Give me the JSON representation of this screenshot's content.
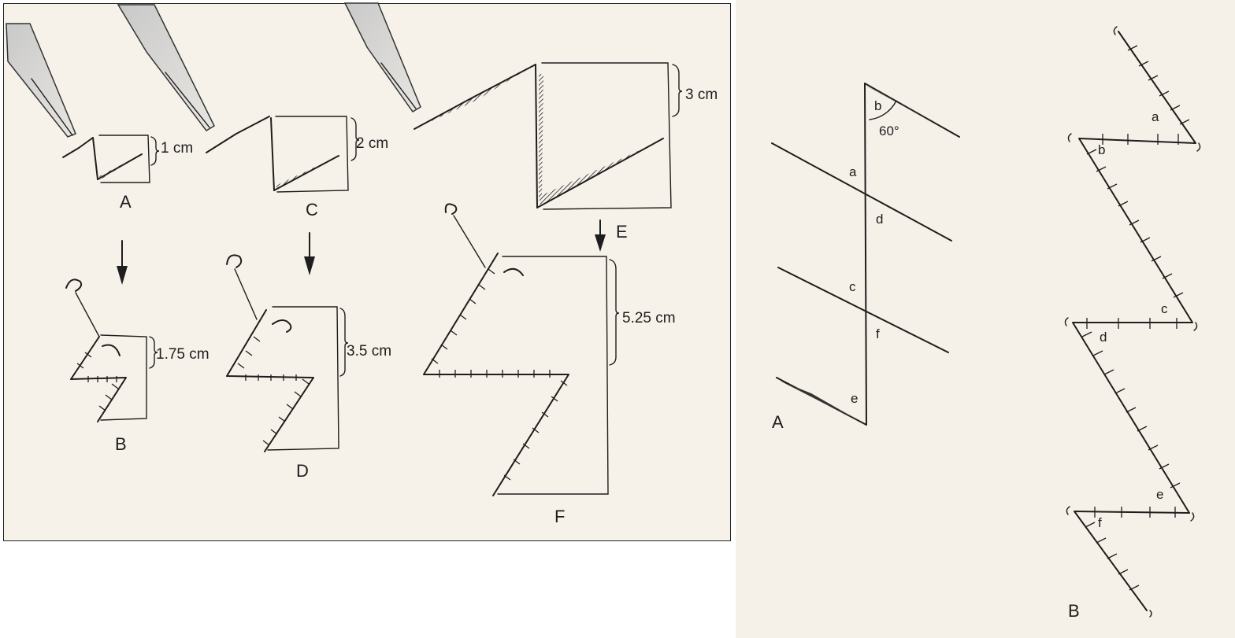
{
  "left_figure": {
    "panels": {
      "A": "A",
      "B": "B",
      "C": "C",
      "D": "D",
      "E": "E",
      "F": "F"
    },
    "measurements": {
      "A": "1 cm",
      "B": "1.75 cm",
      "C": "2 cm",
      "D": "3.5 cm",
      "E": "3 cm",
      "F": "5.25 cm"
    }
  },
  "right_figure": {
    "panel_a": {
      "label": "A",
      "angle": "60°",
      "points": [
        "a",
        "b",
        "c",
        "d",
        "e",
        "f"
      ]
    },
    "panel_b": {
      "label": "B",
      "points": [
        "a",
        "b",
        "c",
        "d",
        "e",
        "f"
      ]
    }
  }
}
